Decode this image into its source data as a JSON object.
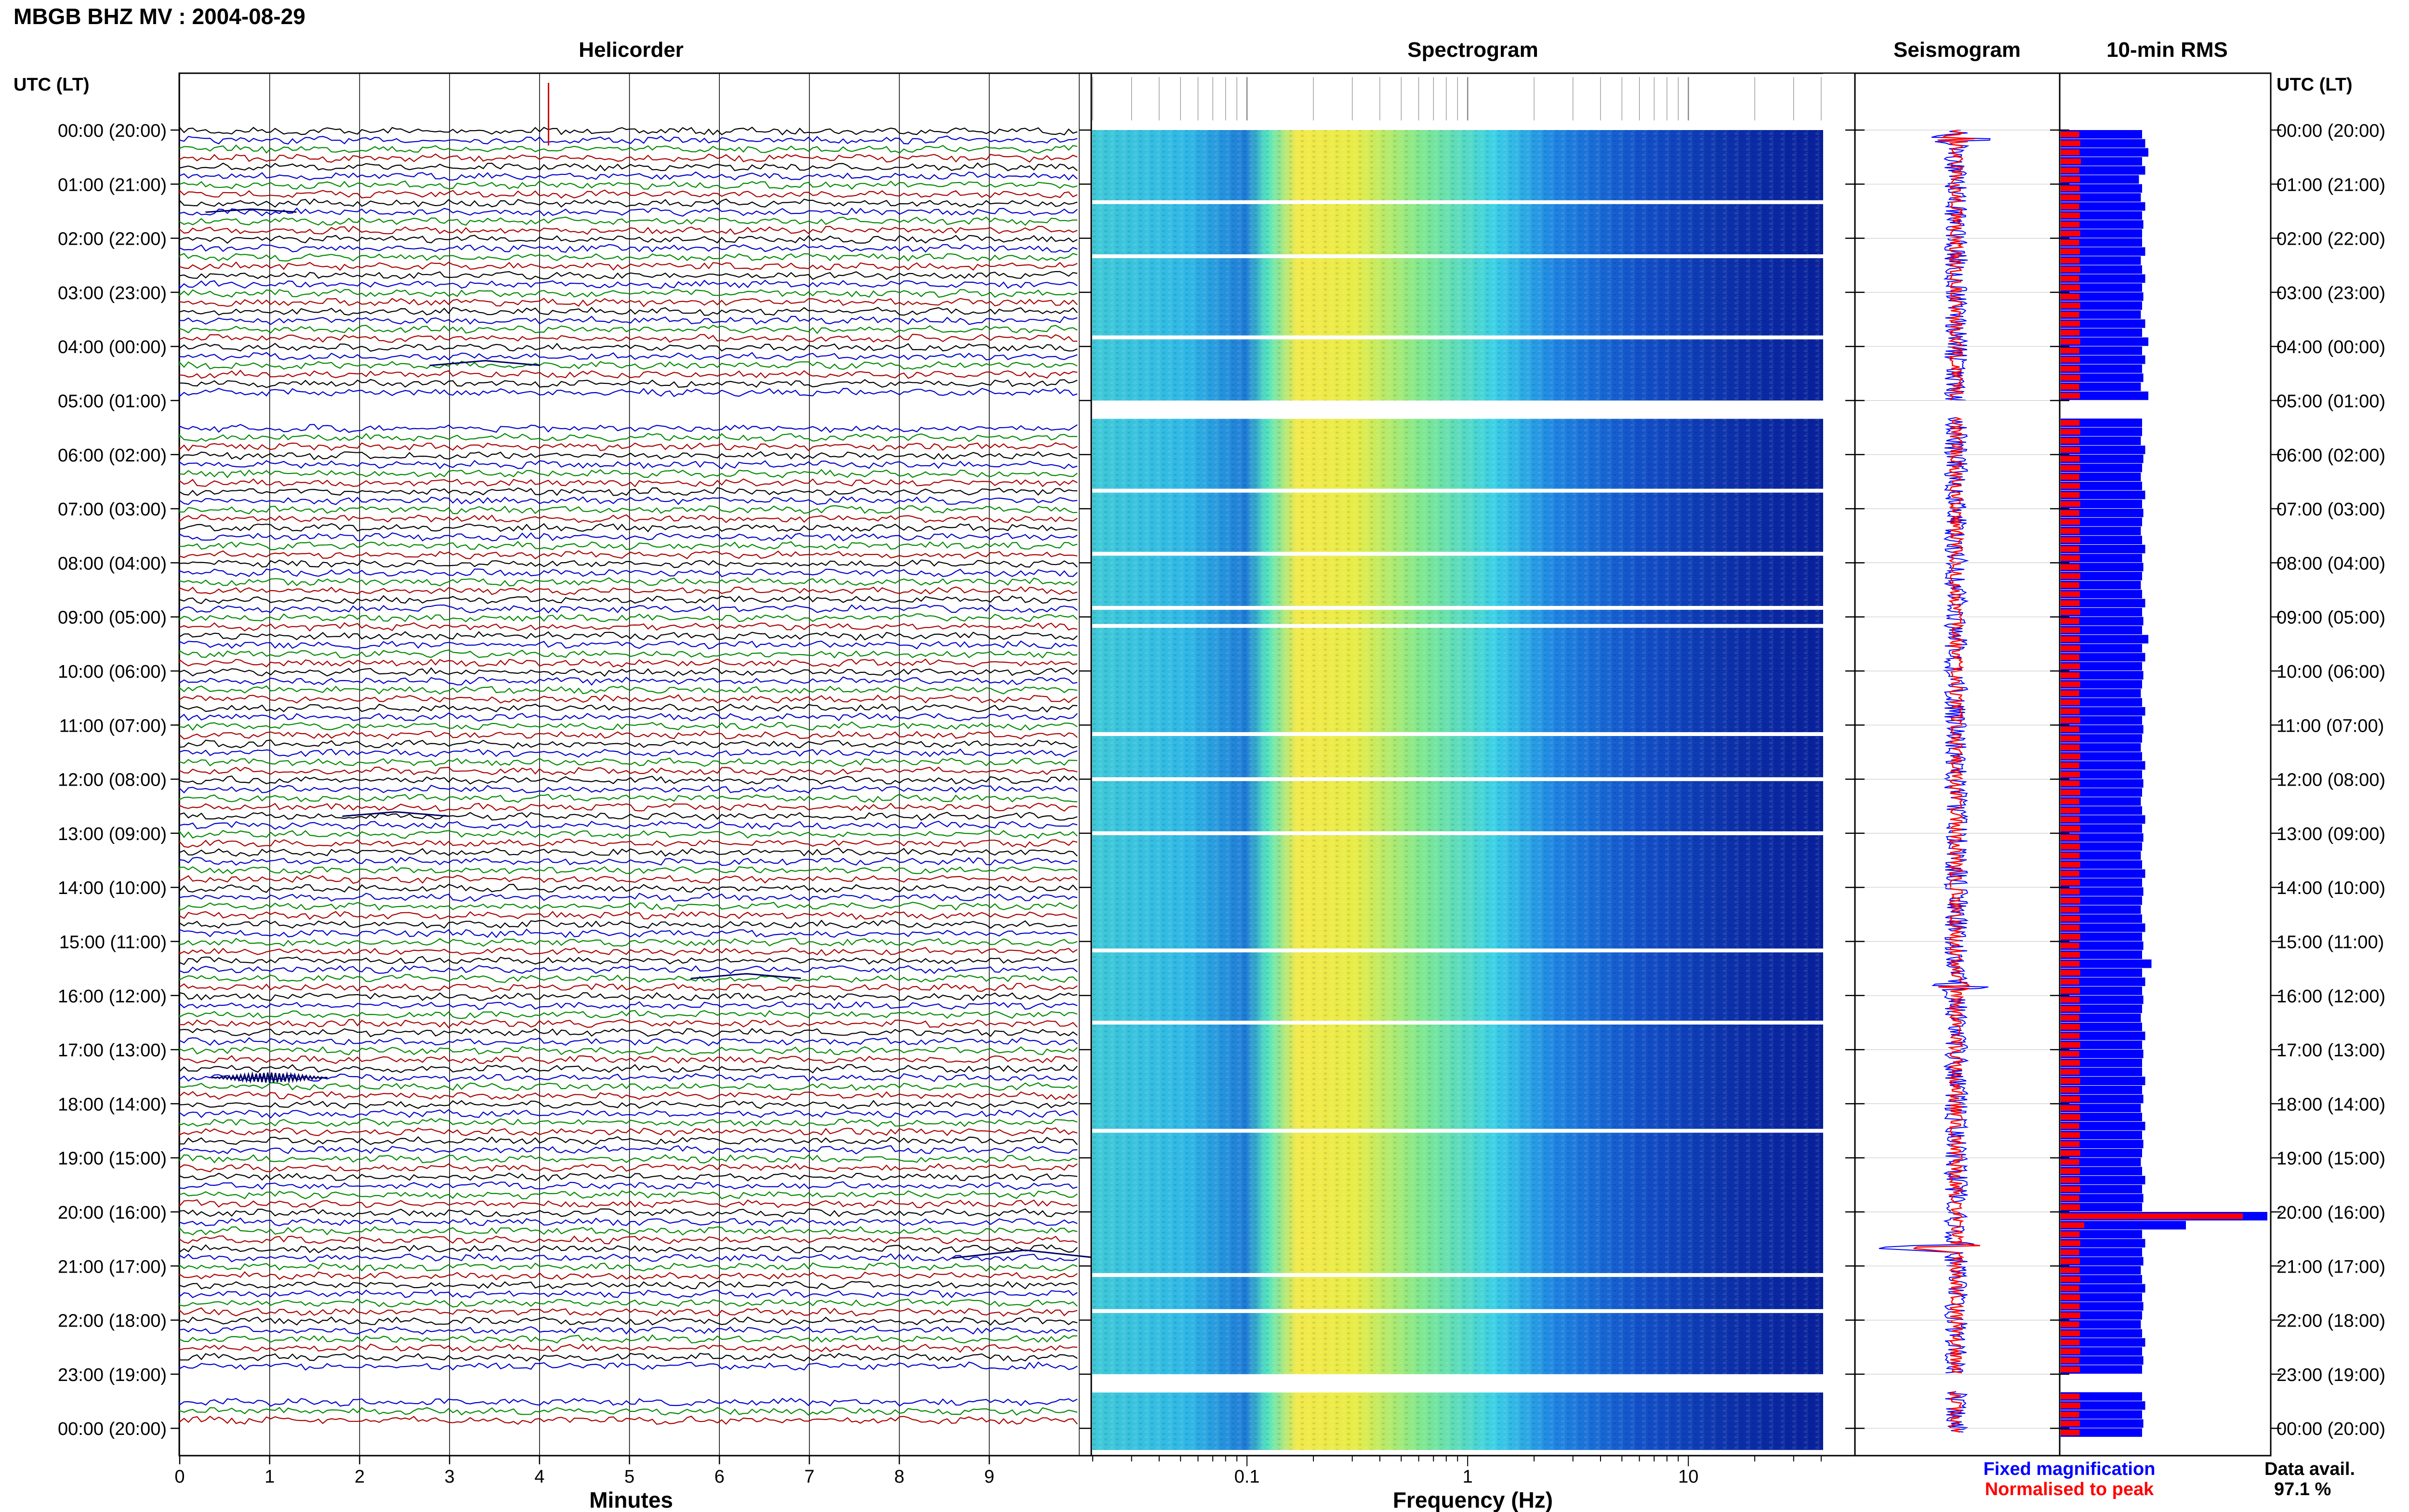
{
  "header": {
    "station_title": "MBGB BHZ MV : 2004-08-29",
    "left_axis_label": "UTC (LT)",
    "right_axis_label": "UTC (LT)"
  },
  "panels": {
    "helicorder": "Helicorder",
    "spectrogram": "Spectrogram",
    "seismogram": "Seismogram",
    "rms": "10-min RMS"
  },
  "time_ticks": [
    "00:00 (20:00)",
    "01:00 (21:00)",
    "02:00 (22:00)",
    "03:00 (23:00)",
    "04:00 (00:00)",
    "05:00 (01:00)",
    "06:00 (02:00)",
    "07:00 (03:00)",
    "08:00 (04:00)",
    "09:00 (05:00)",
    "10:00 (06:00)",
    "11:00 (07:00)",
    "12:00 (08:00)",
    "13:00 (09:00)",
    "14:00 (10:00)",
    "15:00 (11:00)",
    "16:00 (12:00)",
    "17:00 (13:00)",
    "18:00 (14:00)",
    "19:00 (15:00)",
    "20:00 (16:00)",
    "21:00 (17:00)",
    "22:00 (18:00)",
    "23:00 (19:00)",
    "00:00 (20:00)"
  ],
  "minute_ticks": [
    "0",
    "1",
    "2",
    "3",
    "4",
    "5",
    "6",
    "7",
    "8",
    "9"
  ],
  "xlabel_minutes": "Minutes",
  "freq_ticks": [
    {
      "label": "0.1",
      "value": 0.1
    },
    {
      "label": "1",
      "value": 1
    },
    {
      "label": "10",
      "value": 10
    }
  ],
  "xlabel_frequency": "Frequency (Hz)",
  "legend": {
    "fixed": "Fixed magnification",
    "normalised": "Normalised to peak"
  },
  "availability": {
    "label": "Data avail.",
    "value": "97.1 %"
  },
  "colors": {
    "trace_cycle": [
      "#000000",
      "#0000cc",
      "#008800",
      "#aa0000"
    ],
    "fixed": "#0000ff",
    "normalised": "#ff0000",
    "spectrogram_colormap": "jet"
  },
  "chart_data": [
    {
      "type": "line",
      "name": "helicorder",
      "xlim": [
        0,
        10
      ],
      "x_unit": "minutes",
      "time_range_utc": [
        "00:00",
        "24:00"
      ],
      "rows_per_hour": 6,
      "gaps_utc": [
        [
          "05:00",
          "05:20"
        ],
        [
          "23:00",
          "23:20"
        ]
      ],
      "events": [
        {
          "utc": "00:00",
          "minute": 4.1,
          "amplitude": 1.0
        },
        {
          "utc": "01:30",
          "minute": 0.8,
          "amplitude": 0.35
        },
        {
          "utc": "04:20",
          "minute": 3.4,
          "amplitude": 0.55
        },
        {
          "utc": "12:40",
          "minute": 2.4,
          "amplitude": 0.5
        },
        {
          "utc": "15:40",
          "minute": 6.3,
          "amplitude": 0.55
        },
        {
          "utc": "17:30",
          "minute": 1.0,
          "amplitude": 0.6
        },
        {
          "utc": "20:50",
          "minute": 9.4,
          "amplitude": 0.9
        }
      ]
    },
    {
      "type": "heatmap",
      "name": "spectrogram",
      "x_scale": "log",
      "xlim": [
        0.02,
        40
      ],
      "colormap": "jet",
      "gaps_utc": [
        "01:20",
        "02:20",
        "03:50",
        "05:00",
        "06:40",
        "07:50",
        "08:50",
        "09:10",
        "11:10",
        "12:00",
        "13:00",
        "15:10",
        "16:30",
        "18:30",
        "21:10",
        "21:50",
        "23:00"
      ]
    },
    {
      "type": "line",
      "name": "seismogram",
      "events_utc": [
        {
          "utc": "00:10",
          "amplitude": 0.4
        },
        {
          "utc": "15:50",
          "amplitude": 0.3
        },
        {
          "utc": "20:40",
          "amplitude": 1.0
        }
      ]
    },
    {
      "type": "bar",
      "name": "10-min RMS",
      "orientation": "horizontal",
      "interval_minutes": 10,
      "series": [
        {
          "name": "Fixed magnification",
          "values": [
            1.3,
            1.35,
            1.4,
            1.3,
            1.35,
            1.25,
            1.3,
            1.28,
            1.35,
            1.3,
            1.32,
            1.3,
            1.3,
            1.35,
            1.28,
            1.3,
            1.35,
            1.3,
            1.32,
            1.3,
            1.28,
            1.35,
            1.3,
            1.4,
            1.3,
            1.35,
            1.3,
            1.32,
            1.28,
            1.4,
            0,
            0,
            1.3,
            1.3,
            1.28,
            1.35,
            1.32,
            1.3,
            1.28,
            1.3,
            1.35,
            1.3,
            1.32,
            1.3,
            1.28,
            1.3,
            1.35,
            1.3,
            1.32,
            1.3,
            1.28,
            1.3,
            1.35,
            1.3,
            1.32,
            1.3,
            1.4,
            1.3,
            1.35,
            1.3,
            1.32,
            1.3,
            1.28,
            1.3,
            1.35,
            1.3,
            1.32,
            1.3,
            1.28,
            1.3,
            1.35,
            1.3,
            1.32,
            1.3,
            1.28,
            1.3,
            1.35,
            1.3,
            1.32,
            1.3,
            1.28,
            1.3,
            1.35,
            1.3,
            1.32,
            1.3,
            1.28,
            1.3,
            1.35,
            1.3,
            1.32,
            1.3,
            1.45,
            1.3,
            1.35,
            1.3,
            1.32,
            1.3,
            1.28,
            1.3,
            1.35,
            1.3,
            1.32,
            1.3,
            1.3,
            1.35,
            1.3,
            1.32,
            1.28,
            1.3,
            1.35,
            1.3,
            1.32,
            1.3,
            1.28,
            1.3,
            1.35,
            1.3,
            1.32,
            1.3,
            3.3,
            2.0,
            1.3,
            1.35,
            1.3,
            1.32,
            1.28,
            1.3,
            1.35,
            1.3,
            1.32,
            1.3,
            1.28,
            1.3,
            1.35,
            1.3,
            1.32,
            1.3,
            0,
            0,
            1.3,
            1.35,
            1.3,
            1.32,
            1.3
          ]
        },
        {
          "name": "Normalised to peak",
          "values": [
            0.55,
            0.58,
            0.56,
            0.6,
            0.55,
            0.57,
            0.56,
            0.58,
            0.55,
            0.57,
            0.56,
            0.58,
            0.55,
            0.57,
            0.56,
            0.58,
            0.55,
            0.57,
            0.56,
            0.58,
            0.55,
            0.57,
            0.56,
            0.58,
            0.55,
            0.57,
            0.56,
            0.58,
            0.55,
            0.57,
            0,
            0,
            0.56,
            0.58,
            0.55,
            0.57,
            0.56,
            0.58,
            0.55,
            0.57,
            0.56,
            0.58,
            0.55,
            0.57,
            0.56,
            0.58,
            0.55,
            0.57,
            0.56,
            0.58,
            0.55,
            0.57,
            0.56,
            0.58,
            0.55,
            0.57,
            0.56,
            0.58,
            0.55,
            0.57,
            0.56,
            0.58,
            0.55,
            0.57,
            0.56,
            0.58,
            0.55,
            0.57,
            0.56,
            0.58,
            0.55,
            0.57,
            0.56,
            0.58,
            0.55,
            0.57,
            0.56,
            0.58,
            0.55,
            0.57,
            0.56,
            0.58,
            0.55,
            0.57,
            0.56,
            0.58,
            0.55,
            0.57,
            0.56,
            0.58,
            0.55,
            0.57,
            0.56,
            0.58,
            0.55,
            0.57,
            0.56,
            0.58,
            0.55,
            0.57,
            0.56,
            0.58,
            0.55,
            0.57,
            0.56,
            0.58,
            0.55,
            0.57,
            0.56,
            0.58,
            0.55,
            0.57,
            0.56,
            0.58,
            0.55,
            0.57,
            0.56,
            0.58,
            0.55,
            0.57,
            1.0,
            0.7,
            0.56,
            0.58,
            0.55,
            0.57,
            0.56,
            0.58,
            0.55,
            0.57,
            0.56,
            0.58,
            0.55,
            0.57,
            0.56,
            0.58,
            0.55,
            0.57,
            0,
            0,
            0.56,
            0.58,
            0.55,
            0.57,
            0.56
          ]
        }
      ]
    }
  ]
}
